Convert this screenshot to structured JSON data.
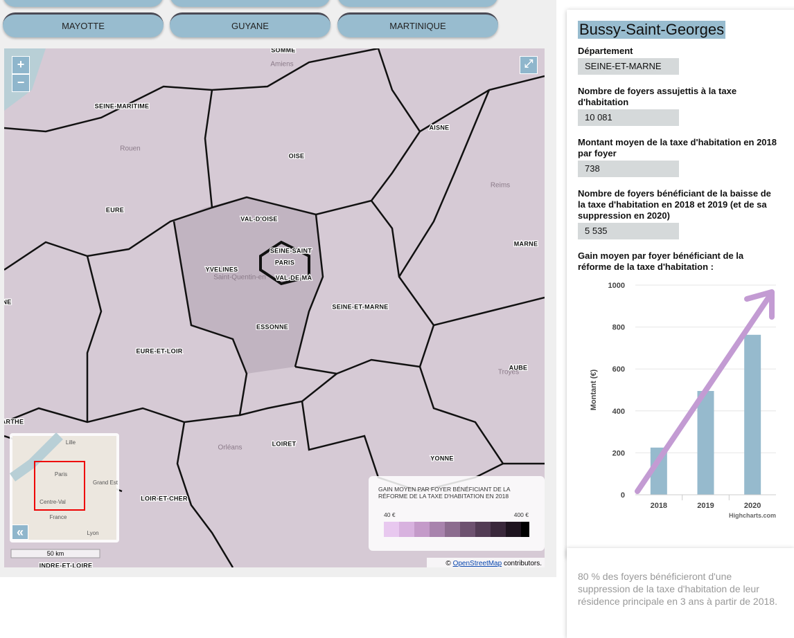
{
  "buttons": [
    "MAYOTTE",
    "GUYANE",
    "MARTINIQUE"
  ],
  "map": {
    "zoom_in": "+",
    "zoom_out": "−",
    "fullscreen": "⤢",
    "labels": [
      "SOMME",
      "SEINE-MARITIME",
      "AISNE",
      "OISE",
      "EURE",
      "VAL-D'OISE",
      "SEINE-SAINT",
      "PARIS",
      "MARNE",
      "YVELINES",
      "VAL-DE-MA",
      "SEINE-ET-MARNE",
      "ESSONNE",
      "EURE-ET-LOIR",
      "AUBE",
      "LOIRET",
      "YONNE",
      "LOIR-ET-CHER",
      "INDRE-ET-LOIRE",
      "NE",
      "ARTHE"
    ],
    "towns": [
      "Amiens",
      "Rouen",
      "Reims",
      "Saint-Quentin-en",
      "Orléans",
      "Troyes"
    ],
    "minimap": {
      "labels": [
        "Lille",
        "Paris",
        "Grand Est",
        "Centre-Val",
        "France",
        "Lyon"
      ],
      "toggle": "«"
    },
    "scale": "50 km",
    "attribution": {
      "prefix": "©",
      "link": "OpenStreetMap",
      "suffix": "contributors."
    },
    "legend": {
      "title": "GAIN MOYEN PAR FOYER BÉNÉFICIANT DE LA RÉFORME DE LA TAXE D'HABITATION EN 2018",
      "min": "40 €",
      "max": "400 €"
    }
  },
  "panel": {
    "commune": "Bussy-Saint-Georges",
    "fields": [
      {
        "label": "Département",
        "value": "SEINE-ET-MARNE"
      },
      {
        "label": "Nombre de foyers assujettis à la taxe d'habitation",
        "value": "10 081"
      },
      {
        "label": "Montant moyen de la taxe d'habitation en 2018 par foyer",
        "value": "738"
      },
      {
        "label": "Nombre de foyers bénéficiant de la baisse de la taxe d'habitation en 2018 et 2019 (et de sa suppression en 2020)",
        "value": "5 535"
      }
    ],
    "chart_label": "Gain moyen par foyer bénéficiant de la réforme de la taxe d'habitation :"
  },
  "chart_data": {
    "type": "bar",
    "categories": [
      "2018",
      "2019",
      "2020"
    ],
    "values": [
      225,
      495,
      763
    ],
    "color": "#96bacd",
    "y_label": "Montant (€)",
    "ylim": [
      0,
      1000
    ],
    "yticks": [
      0,
      200,
      400,
      600,
      800,
      1000
    ],
    "grid": true,
    "credits": "Highcharts.com"
  },
  "note": "80 % des foyers bénéficieront d'une suppression de la taxe d'habitation de leur résidence principale en 3 ans à partir de 2018."
}
